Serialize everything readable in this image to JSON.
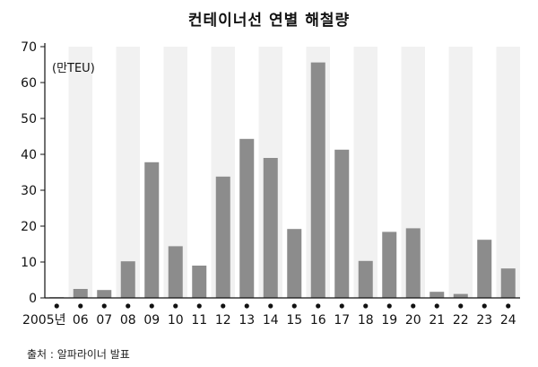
{
  "chart_data": {
    "type": "bar",
    "title": "컨테이너선 연별 해철량",
    "unit_label": "(만TEU)",
    "categories": [
      "2005년",
      "06",
      "07",
      "08",
      "09",
      "10",
      "11",
      "12",
      "13",
      "14",
      "15",
      "16",
      "17",
      "18",
      "19",
      "20",
      "21",
      "22",
      "23",
      "24"
    ],
    "values": [
      0.2,
      2.5,
      2.2,
      10.2,
      37.8,
      14.4,
      9.0,
      33.8,
      44.3,
      39.0,
      19.2,
      65.6,
      41.3,
      10.3,
      18.4,
      19.4,
      1.7,
      1.1,
      16.2,
      8.2
    ],
    "yticks": [
      0,
      10,
      20,
      30,
      40,
      50,
      60,
      70
    ],
    "ylim": [
      0,
      70
    ],
    "grid": false,
    "alternating_column_shading": true,
    "colors": {
      "bar": "#8c8c8c",
      "shade": "#f1f1f1",
      "axis": "#111111",
      "dot": "#111111"
    },
    "source": "출처 : 알파라이너 발표"
  }
}
